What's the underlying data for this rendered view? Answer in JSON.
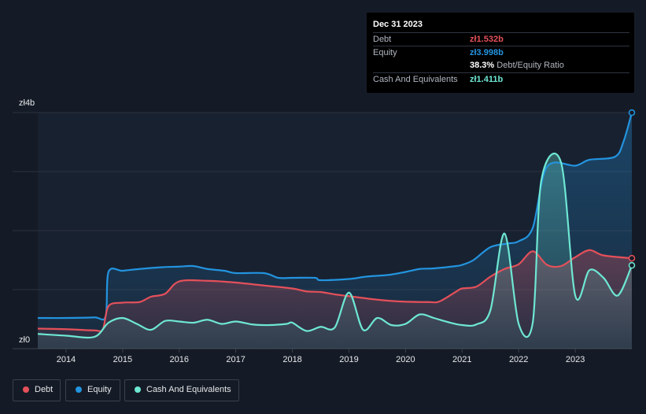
{
  "tooltip": {
    "date": "Dec 31 2023",
    "debt_label": "Debt",
    "debt_value": "zł1.532b",
    "equity_label": "Equity",
    "equity_value": "zł3.998b",
    "ratio_value": "38.3%",
    "ratio_label": "Debt/Equity Ratio",
    "cash_label": "Cash And Equivalents",
    "cash_value": "zł1.411b"
  },
  "legend": [
    {
      "label": "Debt",
      "color": "#e4505a"
    },
    {
      "label": "Equity",
      "color": "#2394df"
    },
    {
      "label": "Cash And Equivalents",
      "color": "#6ee7d3"
    }
  ],
  "chart_data": {
    "type": "area",
    "y_top_label": "zł4b",
    "y_bottom_label": "zł0",
    "ylim": [
      0,
      4
    ],
    "xlim": [
      2013.5,
      2024.0
    ],
    "x_ticks": [
      "2014",
      "2015",
      "2016",
      "2017",
      "2018",
      "2019",
      "2020",
      "2021",
      "2022",
      "2023"
    ],
    "grid": true,
    "series": [
      {
        "name": "Equity",
        "color": "#2394df",
        "points": [
          [
            2013.5,
            0.52
          ],
          [
            2014.0,
            0.52
          ],
          [
            2014.5,
            0.53
          ],
          [
            2014.7,
            0.55
          ],
          [
            2014.75,
            1.3
          ],
          [
            2015.0,
            1.32
          ],
          [
            2015.3,
            1.35
          ],
          [
            2015.7,
            1.38
          ],
          [
            2016.0,
            1.39
          ],
          [
            2016.25,
            1.4
          ],
          [
            2016.5,
            1.35
          ],
          [
            2016.8,
            1.32
          ],
          [
            2017.0,
            1.28
          ],
          [
            2017.5,
            1.28
          ],
          [
            2017.75,
            1.2
          ],
          [
            2018.0,
            1.2
          ],
          [
            2018.4,
            1.2
          ],
          [
            2018.5,
            1.16
          ],
          [
            2019.0,
            1.18
          ],
          [
            2019.3,
            1.22
          ],
          [
            2019.7,
            1.25
          ],
          [
            2020.0,
            1.3
          ],
          [
            2020.25,
            1.35
          ],
          [
            2020.5,
            1.36
          ],
          [
            2020.9,
            1.4
          ],
          [
            2021.0,
            1.42
          ],
          [
            2021.2,
            1.5
          ],
          [
            2021.5,
            1.72
          ],
          [
            2021.8,
            1.78
          ],
          [
            2022.0,
            1.82
          ],
          [
            2022.25,
            2.05
          ],
          [
            2022.5,
            3.08
          ],
          [
            2023.0,
            3.1
          ],
          [
            2023.25,
            3.2
          ],
          [
            2023.7,
            3.25
          ],
          [
            2023.85,
            3.5
          ],
          [
            2024.0,
            3.998
          ]
        ]
      },
      {
        "name": "Debt",
        "color": "#e4505a",
        "points": [
          [
            2013.5,
            0.34
          ],
          [
            2014.0,
            0.33
          ],
          [
            2014.5,
            0.31
          ],
          [
            2014.65,
            0.33
          ],
          [
            2014.75,
            0.72
          ],
          [
            2015.0,
            0.78
          ],
          [
            2015.3,
            0.79
          ],
          [
            2015.5,
            0.88
          ],
          [
            2015.75,
            0.93
          ],
          [
            2016.0,
            1.14
          ],
          [
            2016.5,
            1.15
          ],
          [
            2017.0,
            1.12
          ],
          [
            2017.5,
            1.07
          ],
          [
            2018.0,
            1.02
          ],
          [
            2018.25,
            0.97
          ],
          [
            2018.5,
            0.96
          ],
          [
            2018.75,
            0.92
          ],
          [
            2019.0,
            0.89
          ],
          [
            2019.5,
            0.83
          ],
          [
            2019.9,
            0.8
          ],
          [
            2020.4,
            0.79
          ],
          [
            2020.6,
            0.8
          ],
          [
            2020.9,
            0.97
          ],
          [
            2021.0,
            1.02
          ],
          [
            2021.25,
            1.05
          ],
          [
            2021.5,
            1.22
          ],
          [
            2021.75,
            1.35
          ],
          [
            2022.0,
            1.43
          ],
          [
            2022.25,
            1.65
          ],
          [
            2022.5,
            1.42
          ],
          [
            2022.75,
            1.4
          ],
          [
            2023.0,
            1.55
          ],
          [
            2023.25,
            1.67
          ],
          [
            2023.5,
            1.58
          ],
          [
            2024.0,
            1.532
          ]
        ]
      },
      {
        "name": "Cash And Equivalents",
        "color": "#6ee7d3",
        "points": [
          [
            2013.5,
            0.25
          ],
          [
            2014.0,
            0.22
          ],
          [
            2014.5,
            0.2
          ],
          [
            2014.75,
            0.44
          ],
          [
            2015.0,
            0.52
          ],
          [
            2015.25,
            0.42
          ],
          [
            2015.5,
            0.32
          ],
          [
            2015.75,
            0.47
          ],
          [
            2016.0,
            0.46
          ],
          [
            2016.25,
            0.44
          ],
          [
            2016.5,
            0.49
          ],
          [
            2016.75,
            0.42
          ],
          [
            2017.0,
            0.46
          ],
          [
            2017.3,
            0.41
          ],
          [
            2017.6,
            0.4
          ],
          [
            2017.9,
            0.42
          ],
          [
            2018.0,
            0.44
          ],
          [
            2018.25,
            0.3
          ],
          [
            2018.5,
            0.37
          ],
          [
            2018.75,
            0.36
          ],
          [
            2019.0,
            0.95
          ],
          [
            2019.25,
            0.32
          ],
          [
            2019.5,
            0.52
          ],
          [
            2019.75,
            0.4
          ],
          [
            2020.0,
            0.42
          ],
          [
            2020.25,
            0.58
          ],
          [
            2020.5,
            0.52
          ],
          [
            2020.75,
            0.45
          ],
          [
            2021.0,
            0.4
          ],
          [
            2021.25,
            0.41
          ],
          [
            2021.5,
            0.65
          ],
          [
            2021.75,
            1.95
          ],
          [
            2022.0,
            0.42
          ],
          [
            2022.25,
            0.45
          ],
          [
            2022.4,
            2.85
          ],
          [
            2022.75,
            3.15
          ],
          [
            2023.0,
            0.9
          ],
          [
            2023.25,
            1.33
          ],
          [
            2023.5,
            1.2
          ],
          [
            2023.75,
            0.9
          ],
          [
            2024.0,
            1.411
          ]
        ]
      }
    ]
  }
}
